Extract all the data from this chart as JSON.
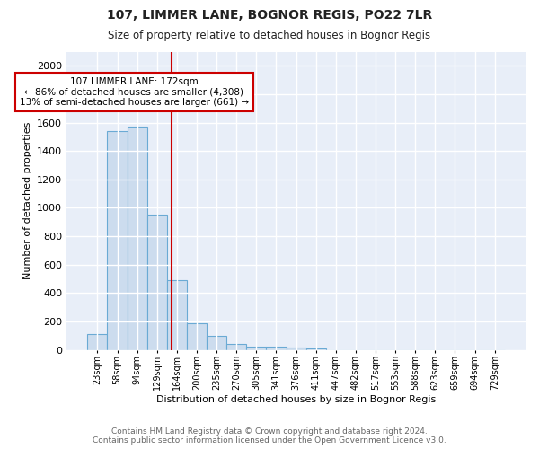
{
  "title1": "107, LIMMER LANE, BOGNOR REGIS, PO22 7LR",
  "title2": "Size of property relative to detached houses in Bognor Regis",
  "xlabel": "Distribution of detached houses by size in Bognor Regis",
  "ylabel": "Number of detached properties",
  "categories": [
    "23sqm",
    "58sqm",
    "94sqm",
    "129sqm",
    "164sqm",
    "200sqm",
    "235sqm",
    "270sqm",
    "305sqm",
    "341sqm",
    "376sqm",
    "411sqm",
    "447sqm",
    "482sqm",
    "517sqm",
    "553sqm",
    "588sqm",
    "623sqm",
    "659sqm",
    "694sqm",
    "729sqm"
  ],
  "values": [
    110,
    1540,
    1570,
    950,
    490,
    185,
    100,
    40,
    25,
    20,
    17,
    8,
    0,
    0,
    0,
    0,
    0,
    0,
    0,
    0,
    0
  ],
  "bar_color": "#ccdcee",
  "bar_edge_color": "#6aaad4",
  "vline_x": 3.72,
  "vline_color": "#cc0000",
  "annotation_text": "107 LIMMER LANE: 172sqm\n← 86% of detached houses are smaller (4,308)\n13% of semi-detached houses are larger (661) →",
  "annotation_box_color": "#ffffff",
  "annotation_box_edge": "#cc0000",
  "ylim": [
    0,
    2100
  ],
  "yticks": [
    0,
    200,
    400,
    600,
    800,
    1000,
    1200,
    1400,
    1600,
    1800,
    2000
  ],
  "footnote": "Contains HM Land Registry data © Crown copyright and database right 2024.\nContains public sector information licensed under the Open Government Licence v3.0.",
  "fig_bg_color": "#ffffff",
  "plot_bg_color": "#e8eef8",
  "grid_color": "#ffffff"
}
